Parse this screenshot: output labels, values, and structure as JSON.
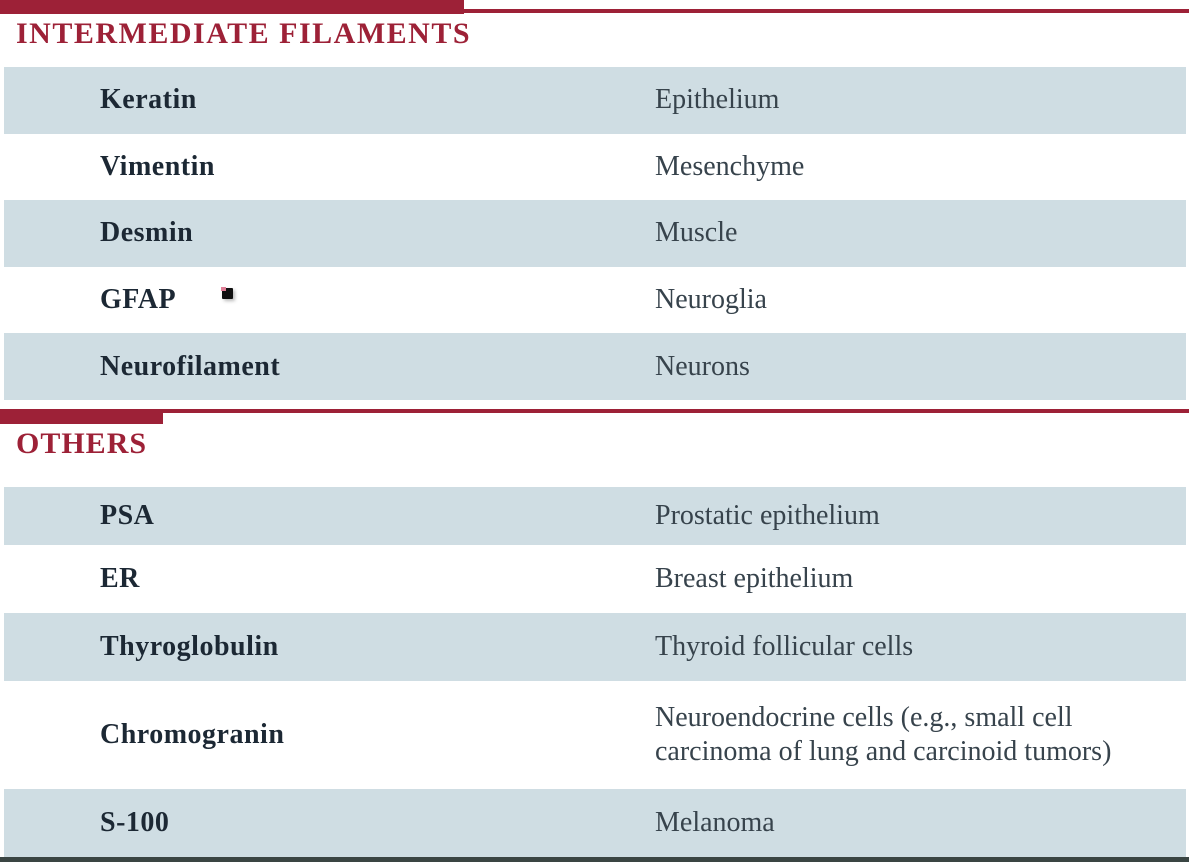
{
  "colors": {
    "accent_red": "#9d2137",
    "row_blue": "#cfdde3",
    "marker_text": "#1c2834",
    "tissue_text": "#37434c",
    "bottom_bar": "#3a4543"
  },
  "sections": [
    {
      "title": "INTERMEDIATE FILAMENTS",
      "rows": [
        {
          "marker": "Keratin",
          "identifies": "Epithelium"
        },
        {
          "marker": "Vimentin",
          "identifies": "Mesenchyme"
        },
        {
          "marker": "Desmin",
          "identifies": "Muscle"
        },
        {
          "marker": "GFAP",
          "identifies": "Neuroglia"
        },
        {
          "marker": "Neurofilament",
          "identifies": "Neurons"
        }
      ]
    },
    {
      "title": "OTHERS",
      "rows": [
        {
          "marker": "PSA",
          "identifies": "Prostatic epithelium"
        },
        {
          "marker": "ER",
          "identifies": "Breast epithelium"
        },
        {
          "marker": "Thyroglobulin",
          "identifies": "Thyroid follicular cells"
        },
        {
          "marker": "Chromogranin",
          "identifies": "Neuroendocrine cells (e.g., small cell carcinoma of lung and carcinoid tumors)"
        },
        {
          "marker": "S-100",
          "identifies": "Melanoma"
        }
      ]
    }
  ]
}
